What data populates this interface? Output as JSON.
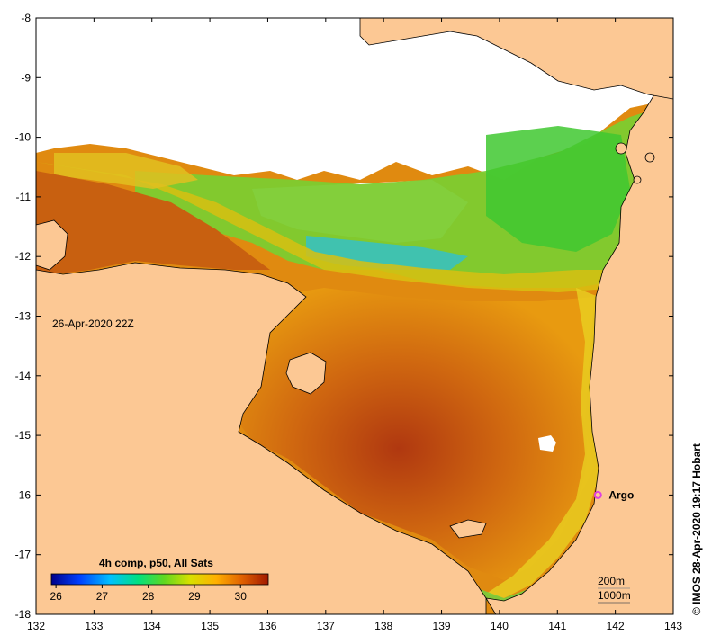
{
  "timestamp": "26-Apr-2020 22Z",
  "credit": "© IMOS 28-Apr-2020 19:17 Hobart",
  "colorbar": {
    "title": "4h comp, p50, All Sats",
    "ticks": [
      "26",
      "27",
      "28",
      "29",
      "30"
    ],
    "range": [
      25.9,
      30.6
    ],
    "colors": [
      "#00008a",
      "#0040ff",
      "#00c0ff",
      "#00e080",
      "#60d820",
      "#d8e000",
      "#ffb000",
      "#e06000",
      "#a01800"
    ]
  },
  "contours": {
    "depth_short": "200m",
    "depth_long": "1000m"
  },
  "marker": {
    "label": "Argo",
    "lon": 141.7,
    "lat": -16.0,
    "color": "#e040e0"
  },
  "colors": {
    "land": "#fcc894",
    "cloud": "#ffffff",
    "sst_warm": "#c05010",
    "sst_mid": "#e89010",
    "sst_cool": "#60c840"
  },
  "chart_data": {
    "type": "heatmap",
    "title": "26-Apr-2020 22Z",
    "xlabel": "",
    "ylabel": "",
    "xlim": [
      132,
      143
    ],
    "ylim": [
      -18,
      -8
    ],
    "x_ticks": [
      "132",
      "133",
      "134",
      "135",
      "136",
      "137",
      "138",
      "139",
      "140",
      "141",
      "142",
      "143"
    ],
    "y_ticks": [
      "-8",
      "-9",
      "-10",
      "-11",
      "-12",
      "-13",
      "-14",
      "-15",
      "-16",
      "-17",
      "-18"
    ],
    "colorbar_ticks": [
      26,
      27,
      28,
      29,
      30
    ],
    "points": [
      {
        "label": "Argo",
        "x": 141.7,
        "y": -16.0
      }
    ]
  }
}
